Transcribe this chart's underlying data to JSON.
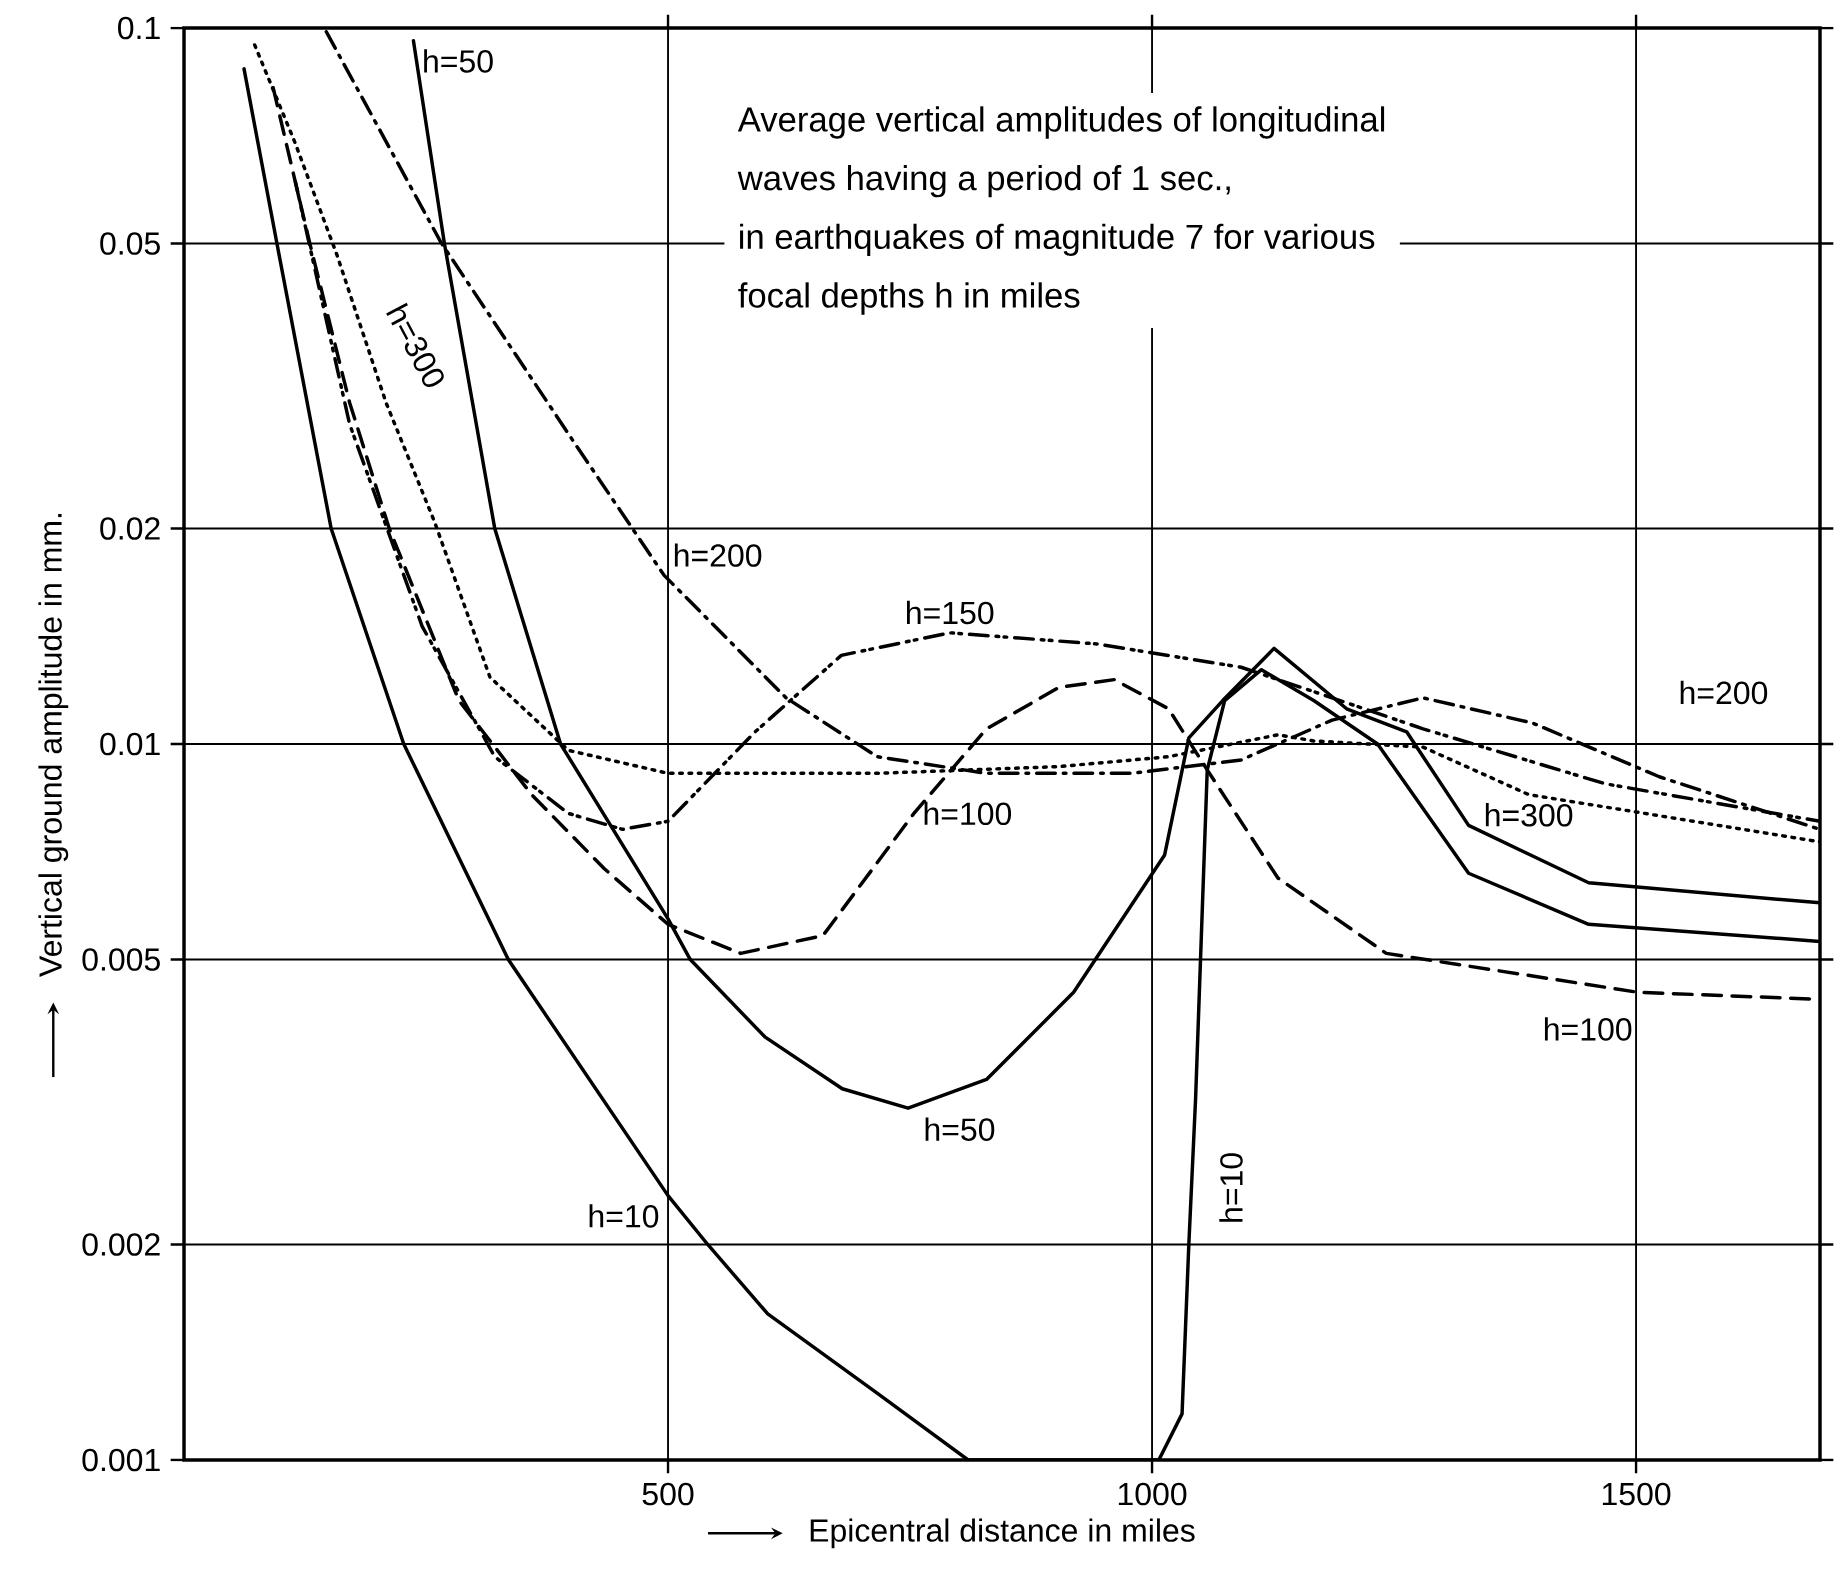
{
  "chart_data": {
    "type": "line",
    "xlabel": "Epicentral distance in miles",
    "ylabel": "Vertical ground amplitude in mm.",
    "annotations": [
      "Average vertical amplitudes of longitudinal",
      "waves having a period of 1 sec.,",
      "in earthquakes of magnitude 7 for various",
      "focal depths h in miles",
      "h=50",
      "h=10",
      "h=100",
      "h=200",
      "h=300"
    ],
    "series": [
      {
        "name": "h=10",
        "color": "#000000",
        "line_style": "solid",
        "x": [
          62,
          96,
          152,
          227,
          335,
          500,
          541,
          603,
          716,
          810,
          1007,
          1031,
          1038,
          1045,
          1057,
          1075,
          1113,
          1167,
          1233,
          1327,
          1451,
          1690
        ],
        "values": [
          0.0877,
          0.05,
          0.02,
          0.01,
          0.005,
          0.00234,
          0.002,
          0.0016,
          0.00124,
          0.001,
          0.001,
          0.00116,
          0.002,
          0.0032,
          0.0092,
          0.0115,
          0.0127,
          0.0115,
          0.01,
          0.0066,
          0.0056,
          0.0053
        ]
      },
      {
        "name": "h=50",
        "color": "#000000",
        "line_style": "solid",
        "x": [
          237,
          269,
          321,
          389,
          500,
          523,
          600,
          680,
          748,
          829,
          919,
          1013,
          1038,
          1073,
          1126,
          1201,
          1263,
          1327,
          1451,
          1690
        ],
        "values": [
          0.096,
          0.05,
          0.02,
          0.01,
          0.0057,
          0.005,
          0.0039,
          0.0033,
          0.0031,
          0.0034,
          0.0045,
          0.007,
          0.0102,
          0.0115,
          0.0136,
          0.0112,
          0.0104,
          0.0077,
          0.0064,
          0.006
        ]
      },
      {
        "name": "h=100",
        "color": "#000000",
        "line_style": "dashed",
        "x": [
          92,
          130,
          171,
          212,
          284,
          359,
          434,
          500,
          575,
          660,
          754,
          829,
          904,
          961,
          1017,
          1057,
          1130,
          1242,
          1502,
          1690
        ],
        "values": [
          0.0826,
          0.05,
          0.03,
          0.02,
          0.0115,
          0.0085,
          0.0067,
          0.0056,
          0.0051,
          0.0054,
          0.008,
          0.0105,
          0.012,
          0.0123,
          0.0112,
          0.0092,
          0.0065,
          0.0051,
          0.0045,
          0.0044
        ]
      },
      {
        "name": "h=150",
        "color": "#000000",
        "line_style": "dashdotdotted",
        "x": [
          115,
          171,
          246,
          321,
          397,
          453,
          500,
          590,
          679,
          791,
          942,
          1092,
          1186,
          1280,
          1468,
          1690
        ],
        "values": [
          0.061,
          0.028,
          0.0146,
          0.0096,
          0.008,
          0.0076,
          0.0078,
          0.0104,
          0.0133,
          0.0143,
          0.0138,
          0.0128,
          0.0116,
          0.0105,
          0.0088,
          0.0078
        ]
      },
      {
        "name": "h=200",
        "color": "#000000",
        "line_style": "dashdotted",
        "x": [
          147,
          265,
          402,
          496,
          622,
          716,
          829,
          979,
          1092,
          1186,
          1280,
          1393,
          1524,
          1690
        ],
        "values": [
          0.0988,
          0.0503,
          0.0265,
          0.0172,
          0.0116,
          0.0096,
          0.0091,
          0.0091,
          0.0095,
          0.0108,
          0.0116,
          0.0107,
          0.009,
          0.0076
        ]
      },
      {
        "name": "h=300",
        "color": "#000000",
        "line_style": "dotted",
        "x": [
          73,
          115,
          158,
          209,
          259,
          316,
          397,
          500,
          716,
          904,
          1017,
          1130,
          1167,
          1280,
          1389,
          1690
        ],
        "values": [
          0.0947,
          0.069,
          0.0482,
          0.0299,
          0.0204,
          0.0124,
          0.0098,
          0.0091,
          0.0091,
          0.0093,
          0.0096,
          0.0103,
          0.0101,
          0.0099,
          0.0085,
          0.0073
        ]
      }
    ],
    "xlim": [
      0,
      1690
    ],
    "ylim": [
      0.001,
      0.1
    ],
    "xticks": [
      500,
      1000,
      1500
    ],
    "yticks": [
      0.001,
      0.002,
      0.005,
      0.01,
      0.02,
      0.05,
      0.1
    ],
    "log": "y",
    "grid": true
  }
}
